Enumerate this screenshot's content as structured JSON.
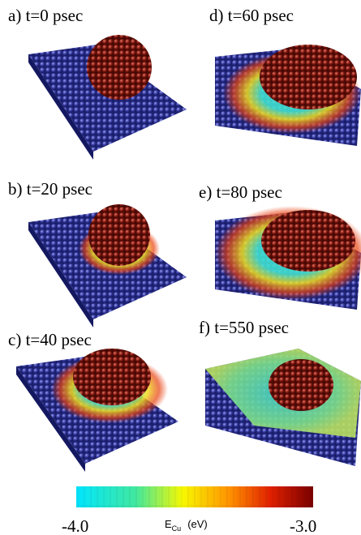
{
  "panels": [
    {
      "label": "a) t=0 psec"
    },
    {
      "label": "b) t=20 psec"
    },
    {
      "label": "c) t=40 psec"
    },
    {
      "label": "d) t=60 psec"
    },
    {
      "label": "e) t=80 psec"
    },
    {
      "label": "f) t=550 psec"
    }
  ],
  "colorbar": {
    "min_label": "-4.0",
    "max_label": "-3.0",
    "symbol": "E",
    "subscript": "Cu",
    "unit": "(eV)"
  }
}
